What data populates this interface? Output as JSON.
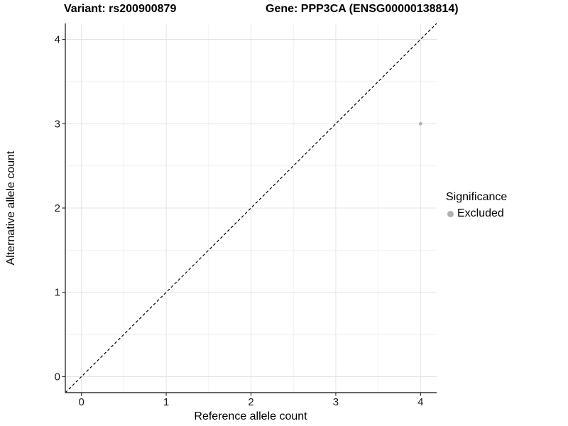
{
  "chart_data": {
    "type": "scatter",
    "titles": {
      "left": "Variant: rs200900879",
      "right": "Gene: PPP3CA (ENSG00000138814)"
    },
    "xlabel": "Reference allele count",
    "ylabel": "Alternative allele count",
    "xlim": [
      -0.19,
      4.19
    ],
    "ylim": [
      -0.19,
      4.19
    ],
    "x_ticks": [
      0,
      1,
      2,
      3,
      4
    ],
    "y_ticks": [
      0,
      1,
      2,
      3,
      4
    ],
    "x_minor_ticks": [
      0.5,
      1.5,
      2.5,
      3.5
    ],
    "y_minor_ticks": [
      0.5,
      1.5,
      2.5,
      3.5
    ],
    "grid": "major+minor",
    "reference_line": {
      "kind": "identity y=x",
      "style": "dashed",
      "color": "#000000"
    },
    "series": [
      {
        "name": "Excluded",
        "color": "#b0b0b0",
        "marker": "circle",
        "points": [
          {
            "x": 4,
            "y": 3
          }
        ]
      }
    ],
    "legend": {
      "title": "Significance",
      "position": "right",
      "items": [
        {
          "label": "Excluded",
          "color": "#b0b0b0"
        }
      ]
    }
  },
  "colors": {
    "background": "#ffffff",
    "grid_major": "#e4e4e4",
    "grid_minor": "#f1f1f1",
    "axis_line": "#333333",
    "tick_text": "#1a1a1a",
    "title_text": "#000000"
  }
}
